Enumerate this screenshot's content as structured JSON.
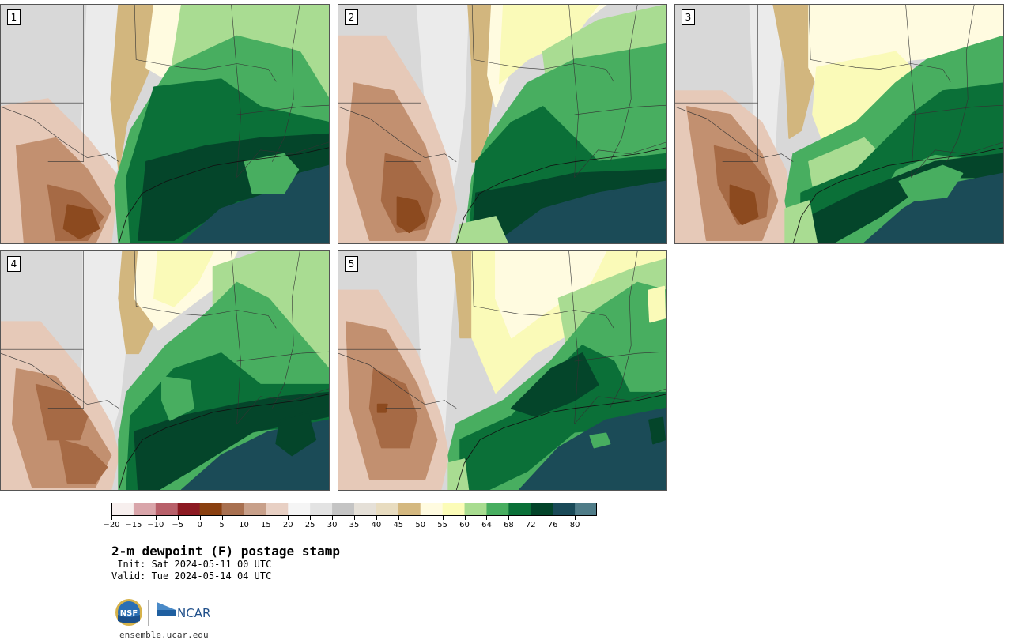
{
  "panels": [
    {
      "label": "1"
    },
    {
      "label": "2"
    },
    {
      "label": "3"
    },
    {
      "label": "4"
    },
    {
      "label": "5"
    }
  ],
  "colorbar": {
    "colors": [
      "#f7efee",
      "#d9a5aa",
      "#b8606a",
      "#8c1a22",
      "#8a4010",
      "#a87050",
      "#c8a08a",
      "#e8d0c4",
      "#f5f5f5",
      "#e3e3e3",
      "#c4c4c4",
      "#e5e0d8",
      "#e8dcc0",
      "#d4b880",
      "#fffbe0",
      "#fcfcb8",
      "#a8dc90",
      "#48ae60",
      "#0a7038",
      "#03442a",
      "#1a4a58",
      "#4f7c88"
    ],
    "tick_labels": [
      "−20",
      "−15",
      "−10",
      "−5",
      "0",
      "5",
      "10",
      "15",
      "20",
      "25",
      "30",
      "35",
      "40",
      "45",
      "50",
      "55",
      "60",
      "64",
      "68",
      "72",
      "76",
      "80"
    ]
  },
  "title": "2-m dewpoint (F) postage stamp",
  "init": " Init: Sat 2024-05-11 00 UTC",
  "valid": "Valid: Tue 2024-05-14 04 UTC",
  "logos": {
    "nsf": "NSF",
    "ncar": "NCAR"
  },
  "url": "ensemble.ucar.edu"
}
